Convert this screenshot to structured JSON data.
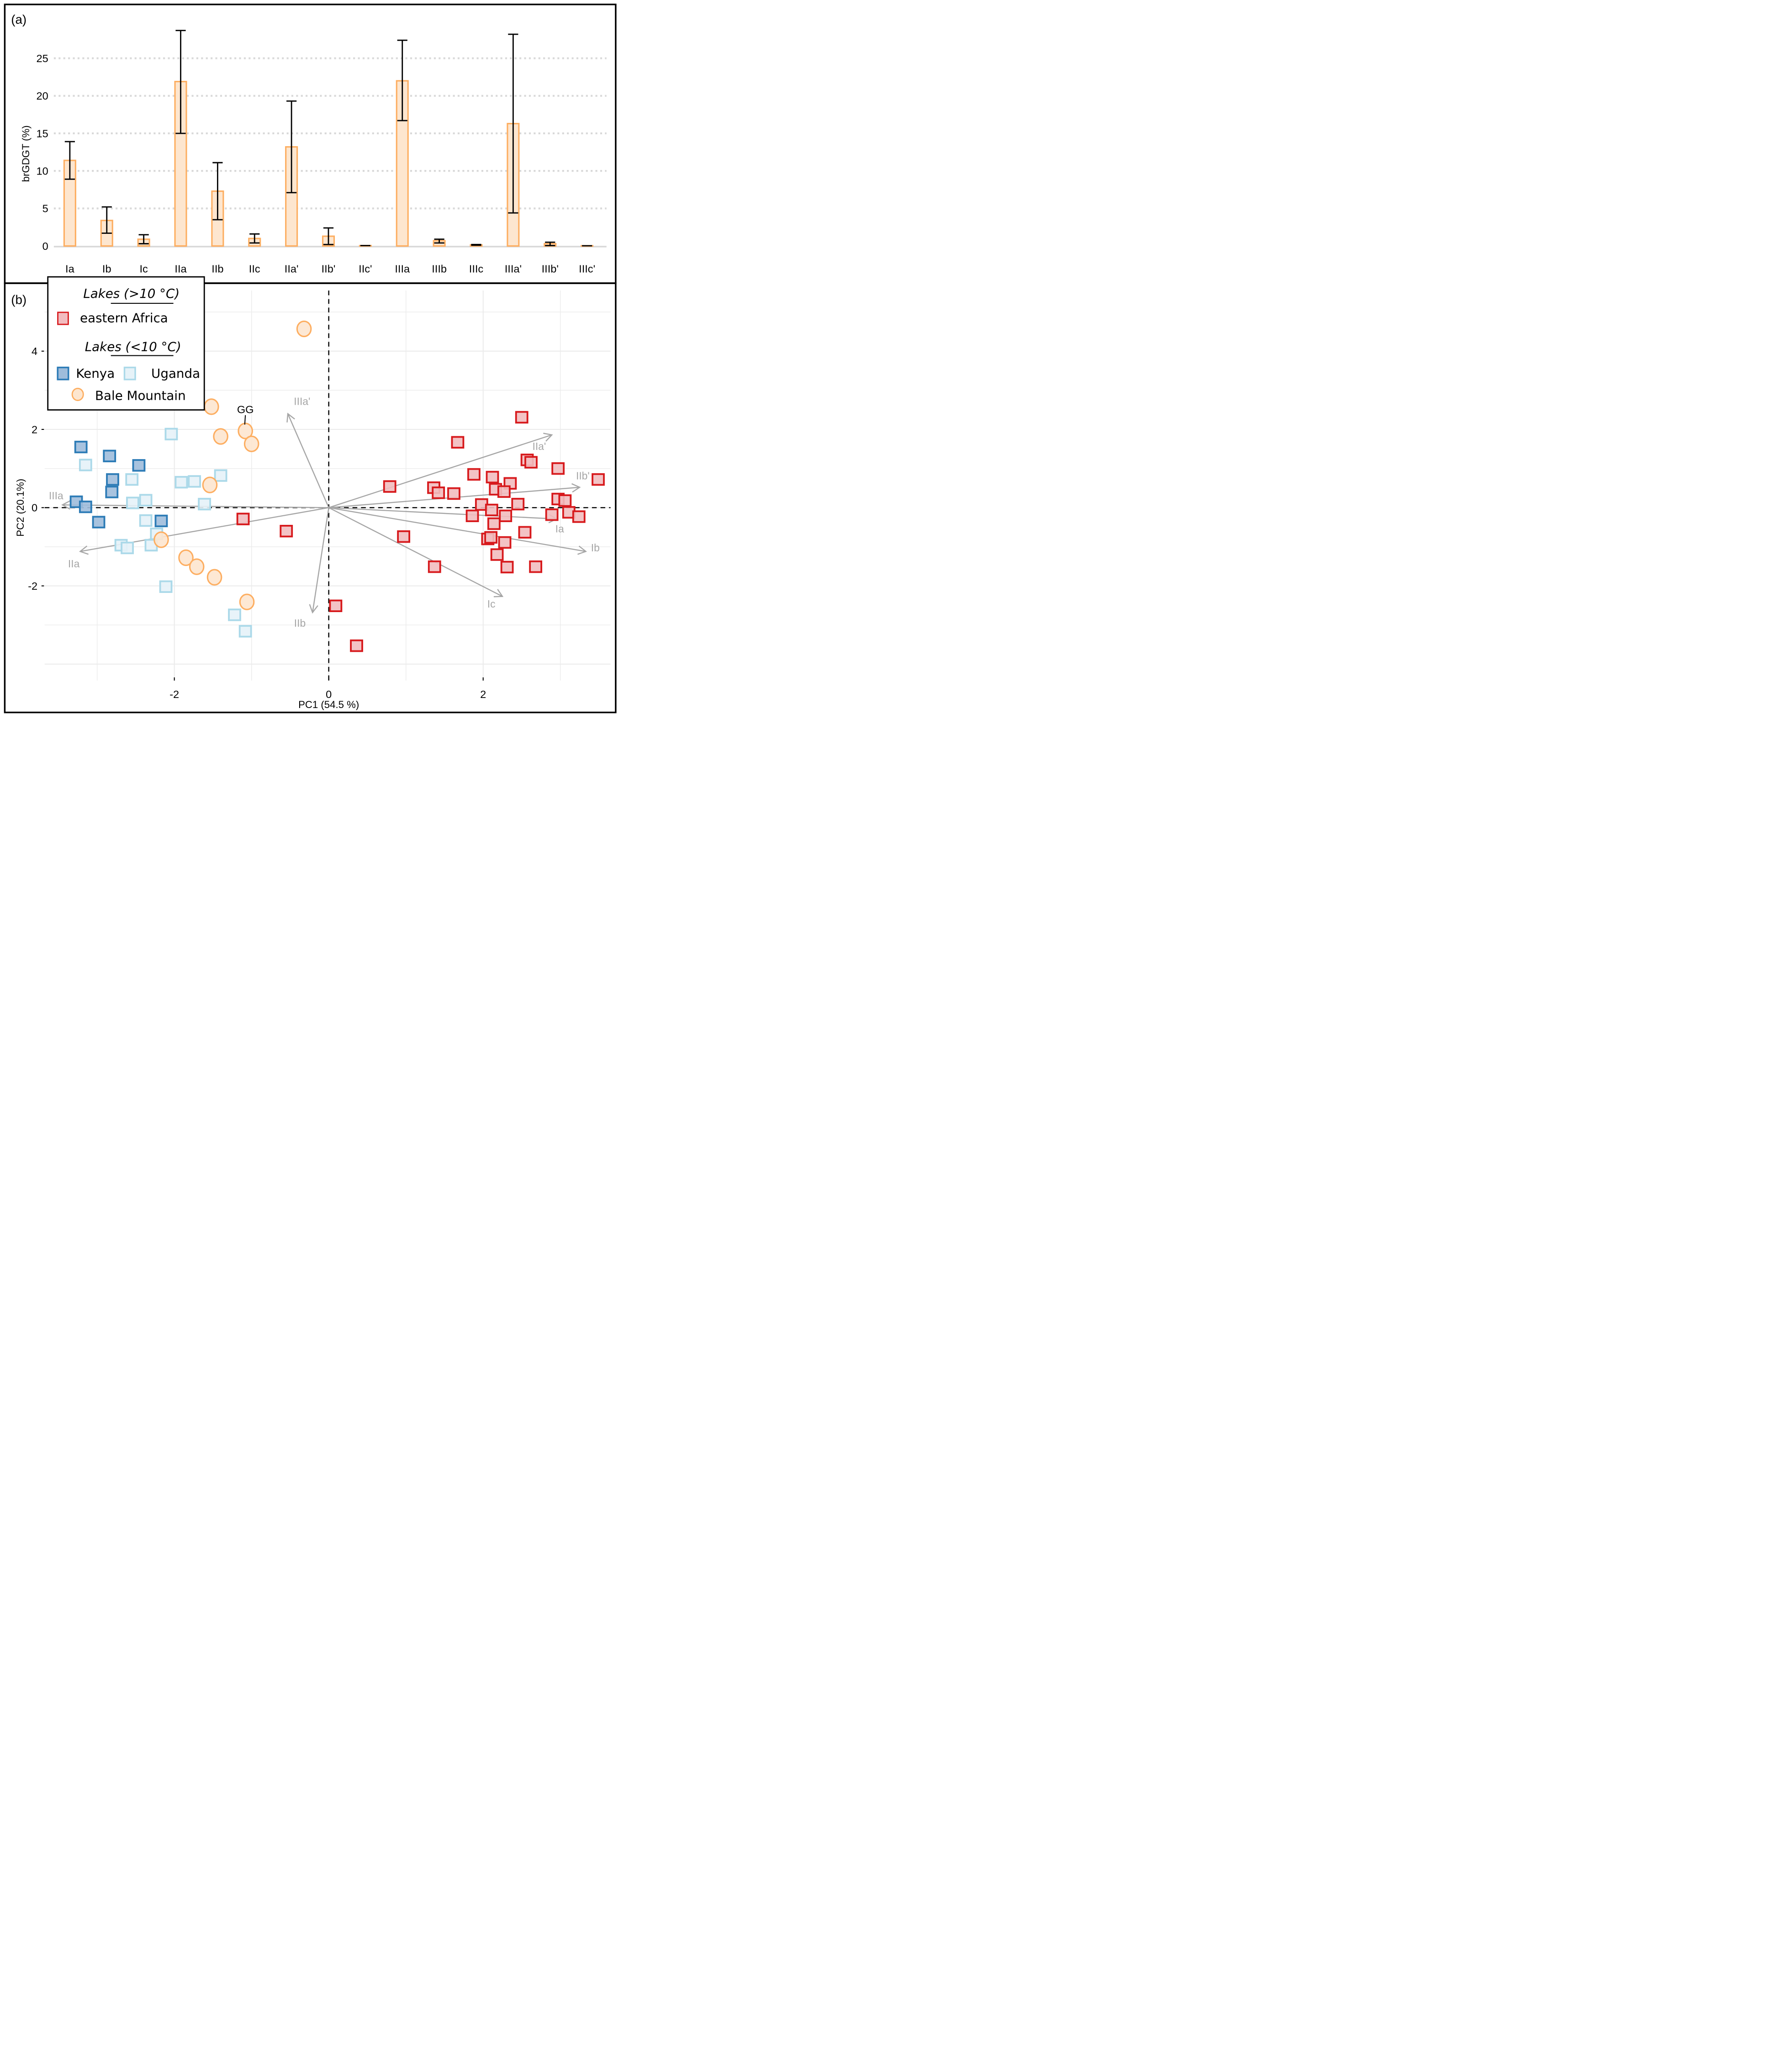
{
  "chart_data": [
    {
      "panel": "(a)",
      "type": "bar",
      "title": "",
      "xlabel": "",
      "ylabel": "brGDGT (%)",
      "ylim": [
        0,
        28.5
      ],
      "yticks": [
        0,
        5,
        10,
        15,
        20,
        25
      ],
      "grid": "horizontal dotted",
      "colors": {
        "fill": "#fde6cf",
        "stroke": "#fdae61",
        "error": "#000000"
      },
      "categories": [
        "Ia",
        "Ib",
        "Ic",
        "IIa",
        "IIb",
        "IIc",
        "IIa'",
        "IIb'",
        "IIc'",
        "IIIa",
        "IIIb",
        "IIIc",
        "IIIa'",
        "IIIb'",
        "IIIc'"
      ],
      "values": [
        11.4,
        3.4,
        0.9,
        21.9,
        7.3,
        1.0,
        13.2,
        1.3,
        0.05,
        22.0,
        0.7,
        0.15,
        16.3,
        0.3,
        0.03
      ],
      "error_low": [
        8.9,
        1.7,
        0.3,
        15.0,
        3.5,
        0.4,
        7.1,
        0.2,
        0.05,
        16.7,
        0.4,
        0.1,
        4.4,
        0.05,
        0.03
      ],
      "error_high": [
        13.9,
        5.2,
        1.5,
        28.7,
        11.1,
        1.6,
        19.3,
        2.4,
        0.05,
        27.4,
        0.9,
        0.2,
        28.2,
        0.5,
        0.03
      ]
    },
    {
      "panel": "(b)",
      "type": "scatter",
      "title": "",
      "xlabel": "PC1 (54.5 %)",
      "ylabel": "PC2 (20.1%)",
      "xlim": [
        -3.68,
        3.65
      ],
      "ylim": [
        -4.42,
        5.55
      ],
      "xticks": [
        -2,
        0,
        2
      ],
      "yticks": [
        -2,
        0,
        2,
        4
      ],
      "grid": true,
      "legend": {
        "placement": "top-left",
        "groups": [
          {
            "heading": "Lakes (>10 °C)",
            "entries": [
              "eastern Africa"
            ]
          },
          {
            "heading": "Lakes (<10 °C)",
            "entries": [
              "Kenya",
              "Uganda",
              "Bale Mountain"
            ]
          }
        ]
      },
      "series": [
        {
          "name": "eastern Africa",
          "marker": "square",
          "fill": "#f2bcbf",
          "stroke": "#d7191c",
          "points": [
            [
              2.5,
              2.31
            ],
            [
              1.67,
              1.67
            ],
            [
              2.57,
              1.22
            ],
            [
              2.62,
              1.16
            ],
            [
              2.97,
              1.0
            ],
            [
              3.49,
              0.72
            ],
            [
              1.88,
              0.85
            ],
            [
              2.12,
              0.78
            ],
            [
              2.35,
              0.62
            ],
            [
              2.16,
              0.47
            ],
            [
              2.27,
              0.41
            ],
            [
              0.79,
              0.54
            ],
            [
              1.36,
              0.51
            ],
            [
              1.42,
              0.38
            ],
            [
              1.62,
              0.36
            ],
            [
              2.97,
              0.22
            ],
            [
              3.06,
              0.18
            ],
            [
              1.98,
              0.08
            ],
            [
              2.45,
              0.09
            ],
            [
              2.11,
              -0.06
            ],
            [
              1.86,
              -0.21
            ],
            [
              2.29,
              -0.21
            ],
            [
              2.89,
              -0.18
            ],
            [
              3.11,
              -0.12
            ],
            [
              3.24,
              -0.23
            ],
            [
              2.14,
              -0.41
            ],
            [
              2.54,
              -0.63
            ],
            [
              0.97,
              -0.74
            ],
            [
              2.06,
              -0.8
            ],
            [
              2.1,
              -0.76
            ],
            [
              2.28,
              -0.89
            ],
            [
              2.18,
              -1.2
            ],
            [
              1.37,
              -1.51
            ],
            [
              2.31,
              -1.52
            ],
            [
              2.68,
              -1.51
            ],
            [
              -1.11,
              -0.29
            ],
            [
              -0.55,
              -0.6
            ],
            [
              0.09,
              -2.51
            ],
            [
              0.36,
              -3.53
            ]
          ]
        },
        {
          "name": "Kenya",
          "marker": "square",
          "fill": "#9ebcdb",
          "stroke": "#2c7bb6",
          "points": [
            [
              -3.21,
              1.55
            ],
            [
              -2.84,
              1.32
            ],
            [
              -2.46,
              1.08
            ],
            [
              -2.8,
              0.72
            ],
            [
              -2.81,
              0.4
            ],
            [
              -3.27,
              0.15
            ],
            [
              -3.15,
              0.02
            ],
            [
              -2.98,
              -0.37
            ],
            [
              -2.17,
              -0.34
            ]
          ]
        },
        {
          "name": "Uganda",
          "marker": "square",
          "fill": "#e6f2f8",
          "stroke": "#abd9e9",
          "points": [
            [
              -2.04,
              1.88
            ],
            [
              -3.15,
              1.09
            ],
            [
              -2.55,
              0.72
            ],
            [
              -1.91,
              0.65
            ],
            [
              -1.74,
              0.67
            ],
            [
              -1.4,
              0.82
            ],
            [
              -2.54,
              0.12
            ],
            [
              -2.37,
              0.19
            ],
            [
              -1.61,
              0.09
            ],
            [
              -2.37,
              -0.33
            ],
            [
              -2.23,
              -0.67
            ],
            [
              -2.69,
              -0.96
            ],
            [
              -2.61,
              -1.03
            ],
            [
              -2.3,
              -0.96
            ],
            [
              -2.11,
              -2.02
            ],
            [
              -1.22,
              -2.74
            ],
            [
              -1.08,
              -3.16
            ]
          ]
        },
        {
          "name": "Bale Mountain",
          "marker": "circle",
          "fill": "#fde6cf",
          "stroke": "#fdae61",
          "points": [
            [
              -0.32,
              4.57
            ],
            [
              -1.52,
              2.58
            ],
            [
              -1.08,
              1.96
            ],
            [
              -1.4,
              1.82
            ],
            [
              -1.0,
              1.63
            ],
            [
              -1.54,
              0.58
            ],
            [
              -2.17,
              -0.82
            ],
            [
              -1.85,
              -1.28
            ],
            [
              -1.71,
              -1.51
            ],
            [
              -1.48,
              -1.78
            ],
            [
              -1.06,
              -2.41
            ]
          ]
        }
      ],
      "annotations": [
        {
          "text": "GG",
          "x": -1.08,
          "y": 1.96
        }
      ],
      "loadings": [
        {
          "label": "Ia",
          "x": 2.95,
          "y": -0.29
        },
        {
          "label": "Ib",
          "x": 3.33,
          "y": -1.12
        },
        {
          "label": "Ic",
          "x": 2.25,
          "y": -2.27
        },
        {
          "label": "IIa",
          "x": -3.22,
          "y": -1.12
        },
        {
          "label": "IIb",
          "x": -0.21,
          "y": -2.68
        },
        {
          "label": "IIa'",
          "x": 2.89,
          "y": 1.86
        },
        {
          "label": "IIb'",
          "x": 3.25,
          "y": 0.52
        },
        {
          "label": "IIIa",
          "x": -3.45,
          "y": 0.07
        },
        {
          "label": "IIIa'",
          "x": -0.53,
          "y": 2.4
        }
      ]
    }
  ]
}
